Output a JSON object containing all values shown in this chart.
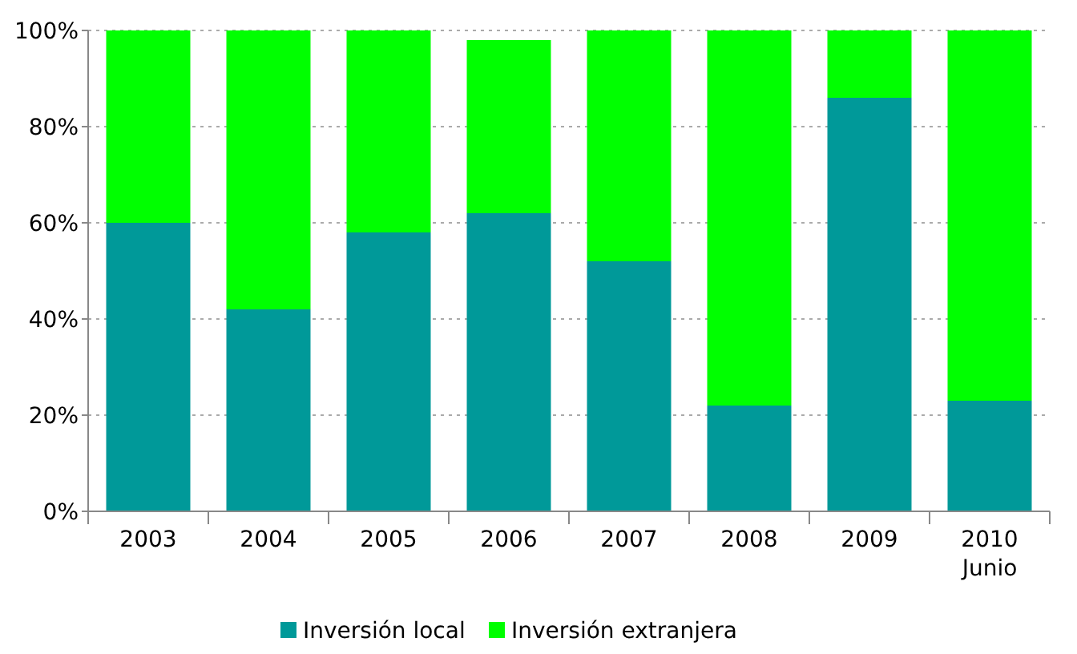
{
  "chart_data": {
    "type": "bar",
    "stacked": true,
    "categories": [
      "2003",
      "2004",
      "2005",
      "2006",
      "2007",
      "2008",
      "2009",
      "2010\nJunio"
    ],
    "series": [
      {
        "name": "Inversión local",
        "color": "#009999",
        "values": [
          60,
          42,
          58,
          62,
          52,
          22,
          86,
          23
        ]
      },
      {
        "name": "Inversión extranjera",
        "color": "#00ff00",
        "values": [
          40,
          58,
          42,
          36,
          48,
          78,
          14,
          77
        ]
      }
    ],
    "ylim": [
      0,
      100
    ],
    "yticks": [
      {
        "value": 0,
        "label": "0%"
      },
      {
        "value": 20,
        "label": "20%"
      },
      {
        "value": 40,
        "label": "40%"
      },
      {
        "value": 60,
        "label": "60%"
      },
      {
        "value": 80,
        "label": "80%"
      },
      {
        "value": 100,
        "label": "100%"
      }
    ],
    "grid": "y",
    "legend": "bottom"
  }
}
